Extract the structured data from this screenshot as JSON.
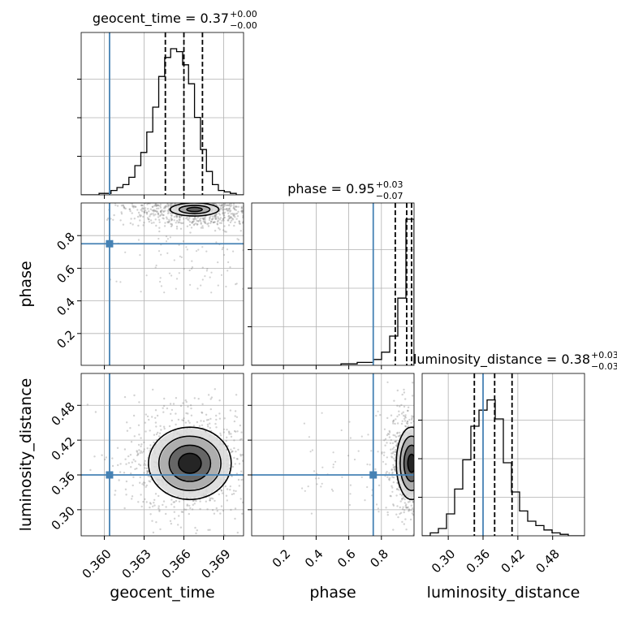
{
  "chart_data": {
    "type": "corner",
    "parameters": [
      "geocent_time",
      "phase",
      "luminosity_distance"
    ],
    "truths": {
      "geocent_time": 0.36039,
      "phase": 0.75,
      "luminosity_distance": 0.36
    },
    "colors": {
      "truth": "#4682b4",
      "hist": "#000000",
      "grid": "#b0b0b0",
      "samples": "#7f7f7f"
    },
    "titles": [
      {
        "param": "geocent_time",
        "prefix": "geocent_time = 0.37",
        "plus": "+0.00",
        "minus": "−0.00"
      },
      {
        "param": "phase",
        "prefix": "phase = 0.95",
        "plus": "+0.03",
        "minus": "−0.07"
      },
      {
        "param": "luminosity_distance",
        "prefix": "luminosity_distance = 0.38",
        "plus": "+0.03",
        "minus": "−0.03"
      }
    ],
    "axes": {
      "geocent_time": {
        "label": "geocent_time",
        "range": [
          0.35825,
          0.3705
        ],
        "ticks": [
          0.36,
          0.363,
          0.366,
          0.369
        ],
        "tick_labels": [
          "0.360",
          "0.363",
          "0.366",
          "0.369"
        ],
        "quantiles": [
          0.3646,
          0.366,
          0.3674
        ]
      },
      "phase": {
        "label": "phase",
        "range": [
          0.005,
          1.0
        ],
        "ticks": [
          0.2,
          0.4,
          0.6,
          0.8
        ],
        "tick_labels": [
          "0.2",
          "0.4",
          "0.6",
          "0.8"
        ],
        "quantiles": [
          0.885,
          0.955,
          0.985
        ]
      },
      "luminosity_distance": {
        "label": "luminosity_distance",
        "range": [
          0.255,
          0.535
        ],
        "ticks": [
          0.3,
          0.36,
          0.42,
          0.48
        ],
        "tick_labels": [
          "0.30",
          "0.36",
          "0.42",
          "0.48"
        ],
        "quantiles": [
          0.345,
          0.38,
          0.41
        ]
      }
    },
    "histograms": {
      "geocent_time": {
        "bins": [
          0.35825,
          0.3587,
          0.35915,
          0.3596,
          0.36005,
          0.3605,
          0.36095,
          0.3614,
          0.36185,
          0.3623,
          0.36275,
          0.3632,
          0.36365,
          0.3641,
          0.36455,
          0.365,
          0.36545,
          0.3659,
          0.36635,
          0.3668,
          0.36725,
          0.3677,
          0.36815,
          0.3686,
          0.36905,
          0.3695,
          0.36995,
          0.3705
        ],
        "counts": [
          0.0,
          0.0,
          0.0,
          0.01,
          0.01,
          0.03,
          0.05,
          0.07,
          0.12,
          0.2,
          0.29,
          0.43,
          0.6,
          0.81,
          0.94,
          1.0,
          0.98,
          0.89,
          0.76,
          0.53,
          0.31,
          0.16,
          0.07,
          0.03,
          0.02,
          0.01,
          0.0
        ]
      },
      "phase": {
        "bins": [
          0.005,
          0.0548,
          0.1045,
          0.1543,
          0.204,
          0.2538,
          0.3035,
          0.3533,
          0.403,
          0.4528,
          0.5025,
          0.5523,
          0.602,
          0.6518,
          0.7015,
          0.7513,
          0.801,
          0.8508,
          0.9005,
          0.9503,
          1.0
        ],
        "counts": [
          0.0,
          0.0,
          0.0,
          0.0,
          0.0,
          0.0,
          0.0,
          0.0,
          0.0,
          0.0,
          0.0,
          0.01,
          0.01,
          0.02,
          0.02,
          0.04,
          0.09,
          0.2,
          0.46,
          1.0
        ]
      },
      "luminosity_distance": {
        "bins": [
          0.255,
          0.269,
          0.283,
          0.297,
          0.311,
          0.325,
          0.339,
          0.353,
          0.367,
          0.381,
          0.395,
          0.409,
          0.423,
          0.437,
          0.451,
          0.465,
          0.479,
          0.493,
          0.507,
          0.521,
          0.535
        ],
        "counts": [
          0.0,
          0.02,
          0.05,
          0.15,
          0.32,
          0.52,
          0.75,
          0.86,
          0.93,
          0.8,
          0.5,
          0.3,
          0.17,
          0.1,
          0.07,
          0.04,
          0.02,
          0.01,
          0.0,
          0.0
        ]
      }
    },
    "pairs": [
      {
        "x": "geocent_time",
        "y": "phase",
        "center": [
          0.3668,
          0.96
        ],
        "spread": [
          0.0016,
          0.035
        ],
        "contour_scales": [
          0.35,
          0.7,
          1.1
        ]
      },
      {
        "x": "geocent_time",
        "y": "luminosity_distance",
        "center": [
          0.36645,
          0.38
        ],
        "spread": [
          0.0015,
          0.03
        ],
        "contour_scales": [
          0.55,
          1.0,
          1.5,
          2.0
        ]
      },
      {
        "x": "phase",
        "y": "luminosity_distance",
        "center": [
          0.985,
          0.38
        ],
        "spread": [
          0.045,
          0.03
        ],
        "contour_scales": [
          0.5,
          1.0,
          1.5,
          2.0
        ]
      }
    ]
  }
}
